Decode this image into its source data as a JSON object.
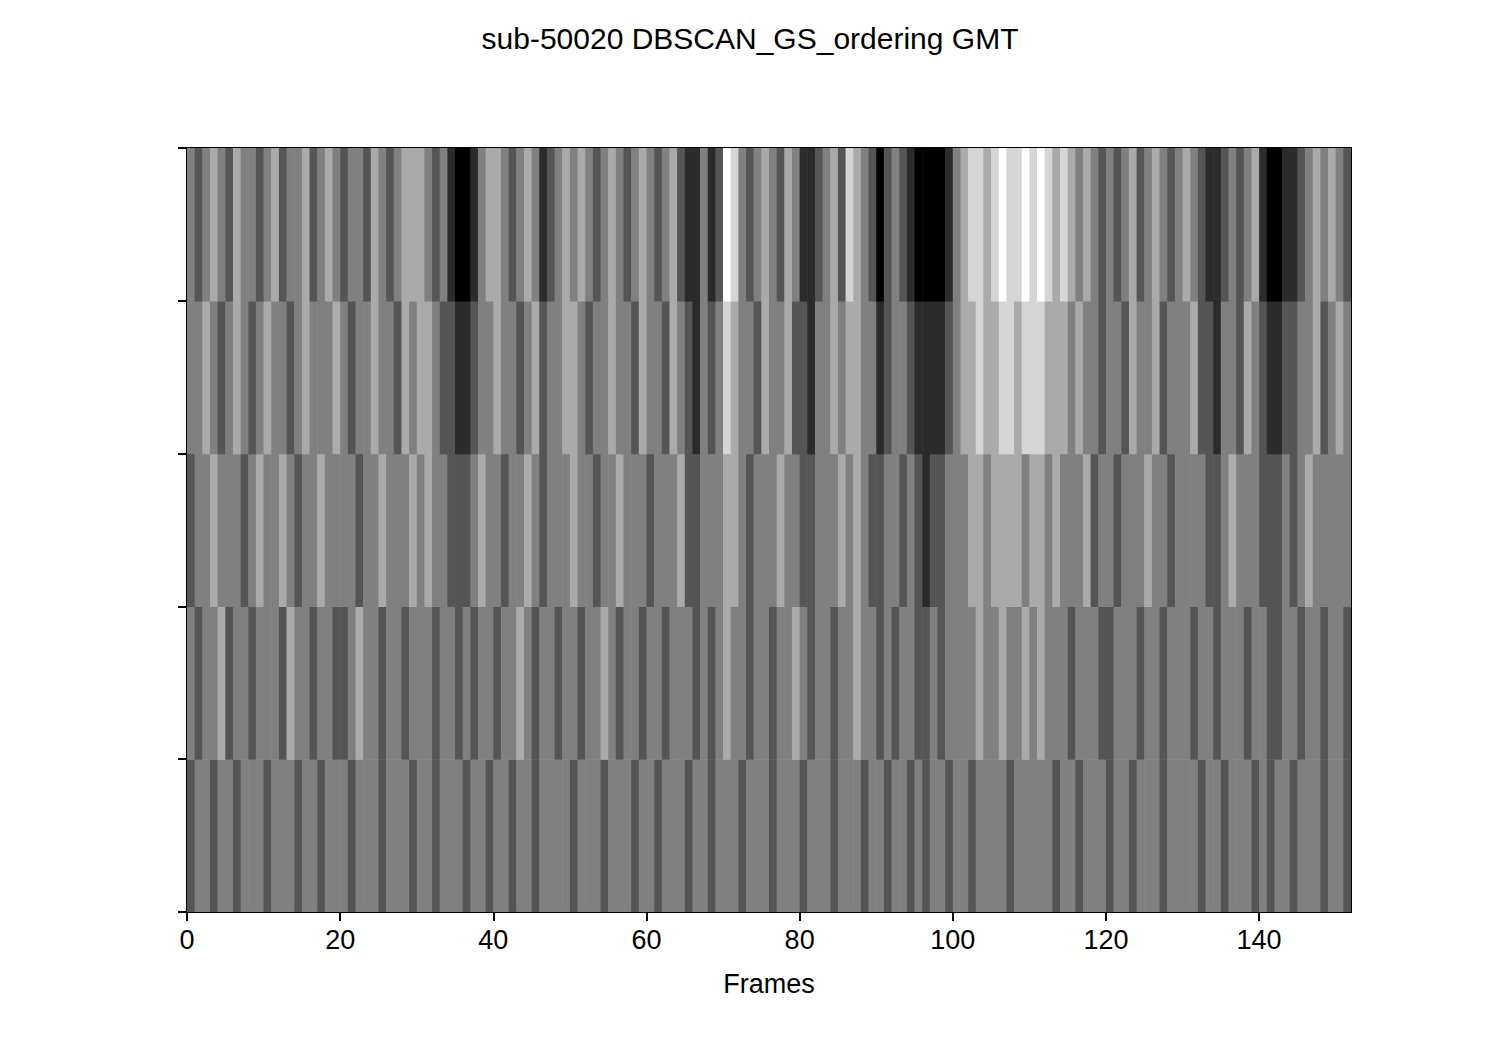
{
  "chart_data": {
    "type": "heatmap",
    "title": "sub-50020 DBSCAN_GS_ordering GMT",
    "x_label": "Frames",
    "x": [
      0,
      1,
      2,
      3,
      4,
      5,
      6,
      7,
      8,
      9,
      10,
      11,
      12,
      13,
      14,
      15,
      16,
      17,
      18,
      19,
      20,
      21,
      22,
      23,
      24,
      25,
      26,
      27,
      28,
      29,
      30,
      31,
      32,
      33,
      34,
      35,
      36,
      37,
      38,
      39,
      40,
      41,
      42,
      43,
      44,
      45,
      46,
      47,
      48,
      49,
      50,
      51,
      52,
      53,
      54,
      55,
      56,
      57,
      58,
      59,
      60,
      61,
      62,
      63,
      64,
      65,
      66,
      67,
      68,
      69,
      70,
      71,
      72,
      73,
      74,
      75,
      76,
      77,
      78,
      79,
      80,
      81,
      82,
      83,
      84,
      85,
      86,
      87,
      88,
      89,
      90,
      91,
      92,
      93,
      94,
      95,
      96,
      97,
      98,
      99,
      100,
      101,
      102,
      103,
      104,
      105,
      106,
      107,
      108,
      109,
      110,
      111,
      112,
      113,
      114,
      115,
      116,
      117,
      118,
      119,
      120,
      121,
      122,
      123,
      124,
      125,
      126,
      127,
      128,
      129,
      130,
      131,
      132,
      133,
      134,
      135,
      136,
      137,
      138,
      139,
      140,
      141,
      142,
      143,
      144,
      145,
      146,
      147,
      148,
      149,
      150,
      151
    ],
    "y": [
      0,
      1,
      2,
      3,
      4
    ],
    "cells": [
      [
        -1,
        0,
        0,
        -1,
        0,
        0,
        -1,
        0,
        0,
        0,
        -1,
        0,
        0,
        0,
        -1,
        0,
        0,
        -1,
        0,
        0,
        0,
        -1,
        0,
        0,
        0,
        -1,
        0,
        0,
        0,
        -1,
        0,
        0,
        -1,
        0,
        0,
        0,
        -1,
        0,
        0,
        -1,
        0,
        0,
        -1,
        0,
        0,
        -1,
        0,
        0,
        0,
        0,
        -1,
        0,
        0,
        0,
        -1,
        0,
        0,
        0,
        -1,
        0,
        0,
        -1,
        0,
        0,
        0,
        -1,
        0,
        0,
        -1,
        0,
        0,
        0,
        -1,
        0,
        0,
        0,
        -1,
        0,
        0,
        0,
        -1,
        0,
        0,
        0,
        -1,
        0,
        0,
        0,
        -1,
        0,
        0,
        -1,
        0,
        0,
        -1,
        0,
        -1,
        0,
        0,
        -1,
        0,
        0,
        -1,
        0,
        0,
        0,
        0,
        -1,
        0,
        0,
        0,
        0,
        0,
        -1,
        0,
        0,
        -1,
        0,
        0,
        0,
        -1,
        0,
        0,
        -1,
        0,
        0,
        0,
        -1,
        0,
        0,
        0,
        0,
        -1,
        0,
        0,
        -1,
        0,
        0,
        0,
        -1,
        0,
        -1,
        0,
        0,
        -1,
        0,
        0,
        0,
        -1,
        0,
        0,
        -1
      ],
      [
        0,
        -1,
        0,
        0,
        1,
        -1,
        0,
        0,
        -1,
        0,
        0,
        0,
        -1,
        1,
        0,
        0,
        -1,
        0,
        0,
        -1,
        -1,
        0,
        1,
        0,
        0,
        -1,
        0,
        0,
        -1,
        0,
        0,
        0,
        -1,
        0,
        0,
        -1,
        0,
        -1,
        0,
        0,
        -1,
        0,
        0,
        1,
        0,
        -1,
        0,
        0,
        -1,
        0,
        0,
        -1,
        0,
        0,
        1,
        0,
        -1,
        0,
        0,
        -1,
        0,
        0,
        -1,
        0,
        0,
        0,
        -1,
        0,
        -1,
        0,
        1,
        0,
        0,
        -1,
        0,
        0,
        -1,
        0,
        0,
        1,
        0,
        -1,
        0,
        0,
        -1,
        0,
        0,
        1,
        0,
        0,
        -1,
        0,
        -1,
        0,
        0,
        -1,
        -1,
        0,
        -1,
        0,
        0,
        0,
        0,
        1,
        0,
        0,
        1,
        0,
        0,
        1,
        0,
        1,
        0,
        0,
        0,
        -1,
        0,
        0,
        0,
        -1,
        -1,
        0,
        0,
        0,
        -1,
        0,
        0,
        -1,
        0,
        0,
        0,
        -1,
        0,
        0,
        -1,
        0,
        0,
        0,
        -1,
        0,
        0,
        -1,
        -1,
        0,
        0,
        -1,
        0,
        0,
        -1,
        0,
        0,
        -1
      ],
      [
        -1,
        0,
        0,
        1,
        0,
        0,
        0,
        -1,
        0,
        1,
        0,
        0,
        1,
        0,
        -1,
        0,
        0,
        1,
        0,
        0,
        0,
        0,
        -1,
        0,
        0,
        1,
        0,
        0,
        0,
        1,
        0,
        1,
        0,
        0,
        -1,
        -1,
        -1,
        0,
        1,
        0,
        0,
        -1,
        0,
        0,
        1,
        0,
        -1,
        0,
        0,
        0,
        1,
        0,
        0,
        -1,
        0,
        0,
        1,
        0,
        0,
        0,
        -1,
        0,
        0,
        0,
        1,
        -1,
        -1,
        0,
        0,
        0,
        1,
        1,
        0,
        -1,
        0,
        0,
        0,
        1,
        0,
        0,
        -1,
        -1,
        0,
        0,
        0,
        1,
        0,
        1,
        0,
        -1,
        -1,
        0,
        0,
        -1,
        0,
        -1,
        -2,
        -1,
        -1,
        0,
        0,
        0,
        1,
        1,
        0,
        1,
        1,
        1,
        1,
        0,
        1,
        1,
        0,
        1,
        0,
        0,
        0,
        1,
        -1,
        0,
        0,
        -1,
        0,
        0,
        0,
        1,
        0,
        0,
        -1,
        0,
        0,
        0,
        0,
        -1,
        -1,
        0,
        1,
        0,
        0,
        0,
        -1,
        -1,
        -1,
        0,
        -1,
        0,
        1,
        0,
        0,
        0,
        0,
        0
      ],
      [
        0,
        0,
        1,
        0,
        -1,
        0,
        1,
        0,
        -1,
        0,
        1,
        0,
        0,
        -1,
        0,
        1,
        0,
        0,
        0,
        1,
        0,
        -1,
        0,
        0,
        1,
        0,
        0,
        -1,
        1,
        0,
        1,
        1,
        0,
        -1,
        -1,
        -2,
        -2,
        -1,
        0,
        0,
        1,
        0,
        0,
        -1,
        0,
        1,
        -1,
        0,
        0,
        1,
        1,
        0,
        -1,
        0,
        0,
        1,
        0,
        0,
        -1,
        1,
        0,
        0,
        -1,
        1,
        0,
        -1,
        -2,
        0,
        -1,
        0,
        2,
        1,
        0,
        0,
        -1,
        1,
        0,
        0,
        1,
        -1,
        -1,
        -2,
        0,
        0,
        1,
        0,
        1,
        1,
        0,
        0,
        -2,
        -1,
        0,
        0,
        -1,
        -2,
        -2,
        -2,
        -2,
        -1,
        0,
        1,
        1,
        2,
        1,
        1,
        2,
        2,
        1,
        2,
        2,
        2,
        1,
        1,
        1,
        0,
        1,
        0,
        0,
        -1,
        0,
        0,
        -1,
        1,
        0,
        0,
        1,
        -1,
        0,
        0,
        0,
        1,
        -1,
        -1,
        -2,
        0,
        0,
        -1,
        1,
        0,
        -1,
        -2,
        -2,
        -1,
        -1,
        0,
        0,
        1,
        -1,
        0,
        1,
        0
      ],
      [
        0,
        -1,
        0,
        1,
        0,
        -1,
        1,
        0,
        0,
        -1,
        0,
        1,
        -1,
        0,
        0,
        1,
        -1,
        0,
        1,
        0,
        -1,
        0,
        0,
        -1,
        1,
        0,
        -1,
        0,
        1,
        1,
        1,
        0,
        -1,
        0,
        -2,
        -3,
        -3,
        -2,
        0,
        1,
        1,
        0,
        -1,
        0,
        1,
        0,
        -2,
        -1,
        0,
        1,
        0,
        1,
        0,
        -1,
        0,
        1,
        0,
        -1,
        0,
        1,
        0,
        -1,
        0,
        1,
        -1,
        -2,
        -2,
        0,
        -2,
        -1,
        3,
        2,
        0,
        -1,
        0,
        1,
        0,
        -1,
        1,
        0,
        -2,
        -2,
        -1,
        0,
        1,
        -1,
        2,
        1,
        0,
        -1,
        -3,
        -1,
        0,
        -1,
        -2,
        -3,
        -3,
        -3,
        -3,
        -2,
        0,
        1,
        2,
        2,
        1,
        2,
        3,
        2,
        2,
        3,
        2,
        3,
        2,
        1,
        2,
        1,
        0,
        1,
        0,
        -1,
        0,
        -1,
        0,
        1,
        -1,
        0,
        1,
        0,
        -1,
        0,
        1,
        0,
        -1,
        -2,
        -2,
        -1,
        0,
        -1,
        0,
        1,
        -2,
        -3,
        -3,
        -2,
        -2,
        -1,
        0,
        1,
        0,
        1,
        0,
        -1
      ]
    ],
    "xlim": [
      0,
      152
    ],
    "ylim": [
      0,
      5
    ],
    "xticks": [
      0,
      20,
      40,
      60,
      80,
      100,
      120,
      140
    ],
    "yticks": [
      0,
      1,
      2,
      3,
      4,
      5
    ],
    "tick_labels": "x",
    "zlim": [
      -3,
      3
    ],
    "color": "gray"
  }
}
